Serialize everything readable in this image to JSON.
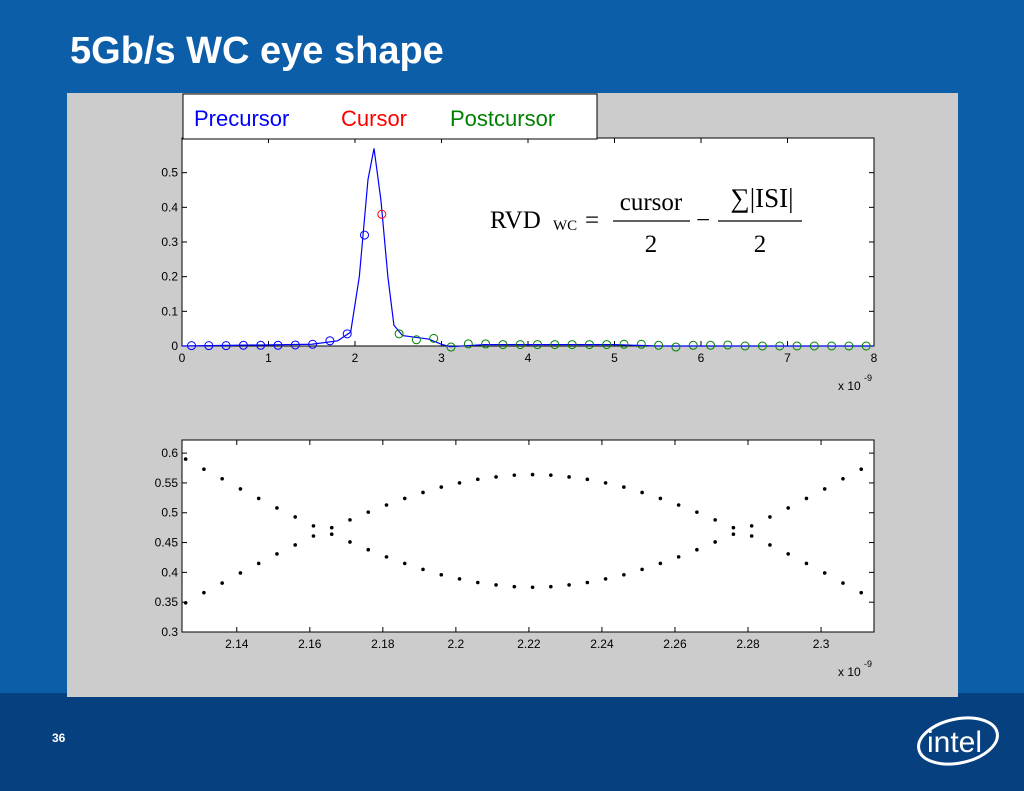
{
  "title": "5Gb/s WC eye shape",
  "slide_number": "36",
  "logo": "intel",
  "chart_data": [
    {
      "type": "scatter",
      "marker": "circle",
      "xlim": [
        0,
        8
      ],
      "ylim": [
        0,
        0.6
      ],
      "xticks": [
        0,
        1,
        2,
        3,
        4,
        5,
        6,
        7,
        8
      ],
      "yticks": [
        0,
        0.1,
        0.2,
        0.3,
        0.4,
        0.5
      ],
      "x_multiplier": {
        "base": "x 10",
        "exponent": "-9"
      },
      "series": [
        {
          "name": "Precursor",
          "color": "#0000ff",
          "x": [
            0.11,
            0.31,
            0.51,
            0.71,
            0.91,
            1.11,
            1.31,
            1.51,
            1.71,
            1.91,
            2.11
          ],
          "values": [
            0.001,
            0.001,
            0.001,
            0.002,
            0.002,
            0.002,
            0.003,
            0.005,
            0.015,
            0.035,
            0.32
          ]
        },
        {
          "name": "Cursor",
          "color": "#ff0000",
          "x": [
            2.31
          ],
          "values": [
            0.38
          ]
        },
        {
          "name": "Postcursor",
          "color": "#008000",
          "x": [
            2.51,
            2.71,
            2.91,
            3.11,
            3.31,
            3.51,
            3.71,
            3.91,
            4.11,
            4.31,
            4.51,
            4.71,
            4.91,
            5.11,
            5.31,
            5.51,
            5.71,
            5.91,
            6.11,
            6.31,
            6.51,
            6.71,
            6.91,
            7.11,
            7.31,
            7.51,
            7.71,
            7.91
          ],
          "values": [
            0.035,
            0.018,
            0.022,
            -0.003,
            0.006,
            0.006,
            0.004,
            0.004,
            0.004,
            0.004,
            0.004,
            0.004,
            0.004,
            0.005,
            0.005,
            0.002,
            -0.003,
            0.002,
            0.002,
            0.003,
            0,
            0,
            0,
            0,
            0,
            0,
            0,
            0
          ]
        }
      ],
      "curve": {
        "color": "#0000ff",
        "x": [
          0,
          1.5,
          1.8,
          1.95,
          2.05,
          2.15,
          2.22,
          2.3,
          2.38,
          2.45,
          2.55,
          2.7,
          2.85,
          3.0,
          3.1,
          3.5,
          5,
          5.5,
          6.5,
          8
        ],
        "values": [
          0,
          0.005,
          0.015,
          0.04,
          0.2,
          0.48,
          0.57,
          0.42,
          0.2,
          0.06,
          0.03,
          0.025,
          0.02,
          0.005,
          -0.002,
          0.004,
          0.004,
          0,
          0,
          0
        ]
      },
      "formula": {
        "lhs": "RVD",
        "lhs_sub": "WC",
        "equals": "=",
        "num1": "cursor",
        "den1": "2",
        "minus": "−",
        "num2": "∑|ISI|",
        "den2": "2"
      }
    },
    {
      "type": "scatter",
      "marker": "dot",
      "xlim": [
        2.125,
        2.3145
      ],
      "ylim": [
        0.3,
        0.622
      ],
      "xticks": [
        2.14,
        2.16,
        2.18,
        2.2,
        2.22,
        2.24,
        2.26,
        2.28,
        2.3
      ],
      "yticks": [
        0.3,
        0.35,
        0.4,
        0.45,
        0.5,
        0.55,
        0.6
      ],
      "x_multiplier": {
        "base": "x 10",
        "exponent": "-9"
      },
      "x": [
        2.126,
        2.131,
        2.136,
        2.141,
        2.146,
        2.151,
        2.156,
        2.161,
        2.166,
        2.171,
        2.176,
        2.181,
        2.186,
        2.191,
        2.196,
        2.201,
        2.206,
        2.211,
        2.216,
        2.221,
        2.226,
        2.231,
        2.236,
        2.241,
        2.246,
        2.251,
        2.256,
        2.261,
        2.266,
        2.271,
        2.276,
        2.281,
        2.286,
        2.291,
        2.296,
        2.301,
        2.306,
        2.311
      ],
      "series": [
        {
          "color": "#000000",
          "values": [
            0.59,
            0.573,
            0.557,
            0.54,
            0.524,
            0.508,
            0.493,
            0.478,
            0.464,
            0.451,
            0.438,
            0.426,
            0.415,
            0.405,
            0.396,
            0.389,
            0.383,
            0.379,
            0.376,
            0.375,
            0.376,
            0.379,
            0.383,
            0.389,
            0.396,
            0.405,
            0.415,
            0.426,
            0.438,
            0.451,
            0.464,
            0.478,
            0.493,
            0.508,
            0.524,
            0.54,
            0.557,
            0.573
          ]
        },
        {
          "color": "#000000",
          "values": [
            0.349,
            0.366,
            0.382,
            0.399,
            0.415,
            0.431,
            0.446,
            0.461,
            0.475,
            0.488,
            0.501,
            0.513,
            0.524,
            0.534,
            0.543,
            0.55,
            0.556,
            0.56,
            0.563,
            0.564,
            0.563,
            0.56,
            0.556,
            0.55,
            0.543,
            0.534,
            0.524,
            0.513,
            0.501,
            0.488,
            0.475,
            0.461,
            0.446,
            0.431,
            0.415,
            0.399,
            0.382,
            0.366
          ]
        }
      ]
    }
  ]
}
